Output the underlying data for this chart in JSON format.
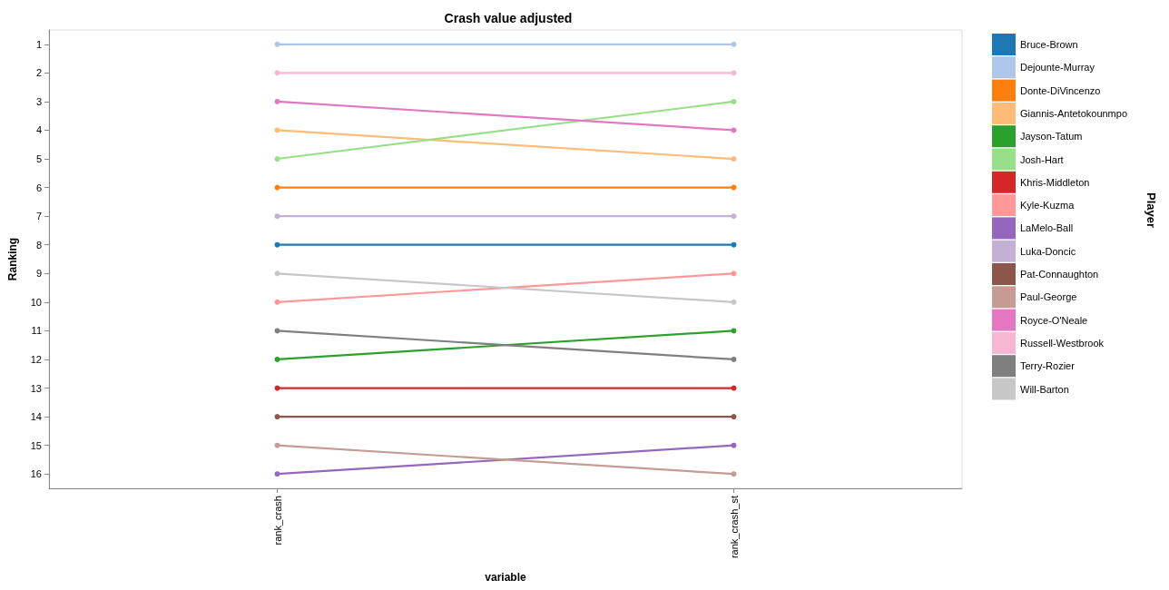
{
  "chart_data": {
    "type": "line",
    "title": "Crash value adjusted",
    "xlabel": "variable",
    "ylabel": "Ranking",
    "legend_title": "Player",
    "categories": [
      "rank_crash",
      "rank_crash_st"
    ],
    "series": [
      {
        "name": "Bruce-Brown",
        "color": "#1f77b4",
        "values": [
          8,
          8
        ]
      },
      {
        "name": "Dejounte-Murray",
        "color": "#aec7e8",
        "values": [
          1,
          1
        ]
      },
      {
        "name": "Donte-DiVincenzo",
        "color": "#ff7f0e",
        "values": [
          6,
          6
        ]
      },
      {
        "name": "Giannis-Antetokounmpo",
        "color": "#ffbb78",
        "values": [
          4,
          5
        ]
      },
      {
        "name": "Jayson-Tatum",
        "color": "#2ca02c",
        "values": [
          12,
          11
        ]
      },
      {
        "name": "Josh-Hart",
        "color": "#98df8a",
        "values": [
          5,
          3
        ]
      },
      {
        "name": "Khris-Middleton",
        "color": "#d62728",
        "values": [
          13,
          13
        ]
      },
      {
        "name": "Kyle-Kuzma",
        "color": "#ff9896",
        "values": [
          10,
          9
        ]
      },
      {
        "name": "LaMelo-Ball",
        "color": "#9467bd",
        "values": [
          16,
          15
        ]
      },
      {
        "name": "Luka-Doncic",
        "color": "#c5b0d5",
        "values": [
          7,
          7
        ]
      },
      {
        "name": "Pat-Connaughton",
        "color": "#8c564b",
        "values": [
          14,
          14
        ]
      },
      {
        "name": "Paul-George",
        "color": "#c49c94",
        "values": [
          15,
          16
        ]
      },
      {
        "name": "Royce-O'Neale",
        "color": "#e377c2",
        "values": [
          3,
          4
        ]
      },
      {
        "name": "Russell-Westbrook",
        "color": "#f7b6d2",
        "values": [
          2,
          2
        ]
      },
      {
        "name": "Terry-Rozier",
        "color": "#7f7f7f",
        "values": [
          11,
          12
        ]
      },
      {
        "name": "Will-Barton",
        "color": "#c7c7c7",
        "values": [
          9,
          10
        ]
      }
    ],
    "ylim": [
      16.5,
      0.5
    ],
    "yticks": [
      1,
      2,
      3,
      4,
      5,
      6,
      7,
      8,
      9,
      10,
      11,
      12,
      13,
      14,
      15,
      16
    ],
    "grid": false,
    "legend": "right",
    "marker": "circle",
    "line_style": "solid"
  }
}
